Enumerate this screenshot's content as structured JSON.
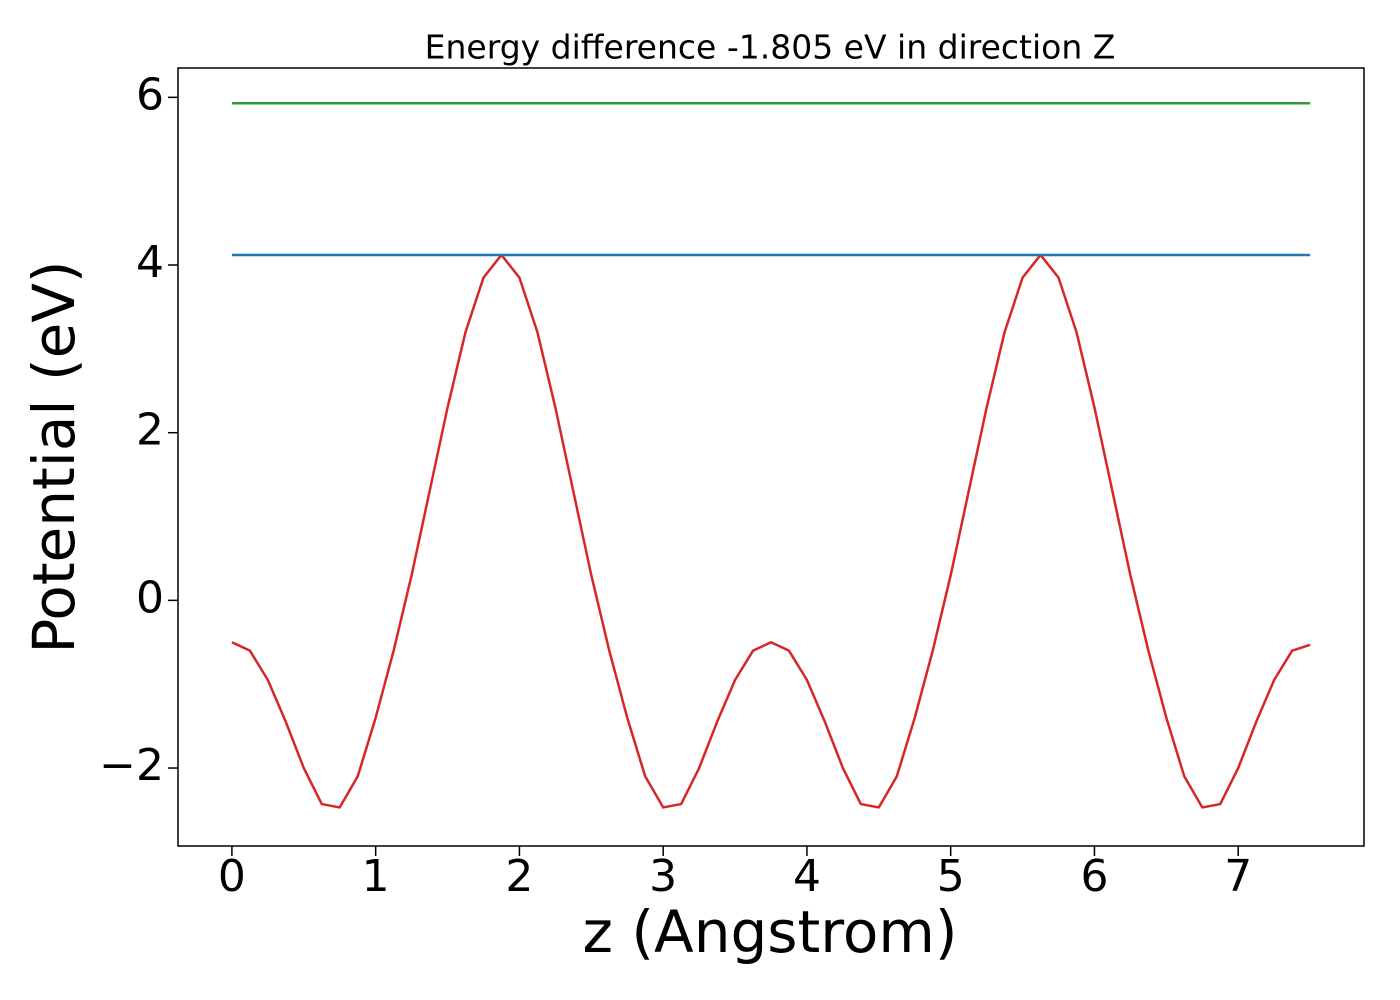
{
  "chart_data": {
    "type": "line",
    "title": "Energy difference -1.805 eV in direction Z",
    "xlabel": "z (Angstrom)",
    "ylabel": "Potential (eV)",
    "xlim": [
      -0.375,
      7.875
    ],
    "ylim": [
      -2.93,
      6.35
    ],
    "xticks": [
      0,
      1,
      2,
      3,
      4,
      5,
      6,
      7
    ],
    "yticks": [
      {
        "value": -2,
        "label": "−2"
      },
      0,
      2,
      4,
      6
    ],
    "grid": false,
    "series": [
      {
        "color": "#d62728",
        "x": [
          0,
          0.125,
          0.25,
          0.375,
          0.5,
          0.625,
          0.75,
          0.875,
          1,
          1.125,
          1.25,
          1.375,
          1.5,
          1.625,
          1.75,
          1.875,
          2,
          2.125,
          2.25,
          2.375,
          2.5,
          2.625,
          2.75,
          2.875,
          3,
          3.125,
          3.25,
          3.375,
          3.5,
          3.625,
          3.75,
          3.875,
          4,
          4.125,
          4.25,
          4.375,
          4.5,
          4.625,
          4.75,
          4.875,
          5,
          5.125,
          5.25,
          5.375,
          5.5,
          5.625,
          5.75,
          5.875,
          6,
          6.125,
          6.25,
          6.375,
          6.5,
          6.625,
          6.75,
          6.875,
          7,
          7.125,
          7.25,
          7.375,
          7.5
        ],
        "values": [
          -0.5,
          -0.6,
          -0.95,
          -1.45,
          -2.0,
          -2.43,
          -2.47,
          -2.1,
          -1.4,
          -0.6,
          0.3,
          1.3,
          2.3,
          3.2,
          3.85,
          4.12,
          3.85,
          3.2,
          2.3,
          1.3,
          0.3,
          -0.6,
          -1.4,
          -2.1,
          -2.47,
          -2.43,
          -2.0,
          -1.45,
          -0.95,
          -0.6,
          -0.5,
          -0.6,
          -0.95,
          -1.45,
          -2.0,
          -2.43,
          -2.47,
          -2.1,
          -1.4,
          -0.6,
          0.3,
          1.3,
          2.3,
          3.2,
          3.85,
          4.12,
          3.85,
          3.2,
          2.3,
          1.3,
          0.3,
          -0.6,
          -1.4,
          -2.1,
          -2.47,
          -2.43,
          -2.0,
          -1.45,
          -0.95,
          -0.6,
          -0.53
        ]
      },
      {
        "color": "#1f77b4",
        "x": [
          0,
          7.5
        ],
        "values": [
          4.12,
          4.12
        ]
      },
      {
        "color": "#2ca02c",
        "x": [
          0,
          7.5
        ],
        "values": [
          5.93,
          5.93
        ]
      }
    ]
  }
}
